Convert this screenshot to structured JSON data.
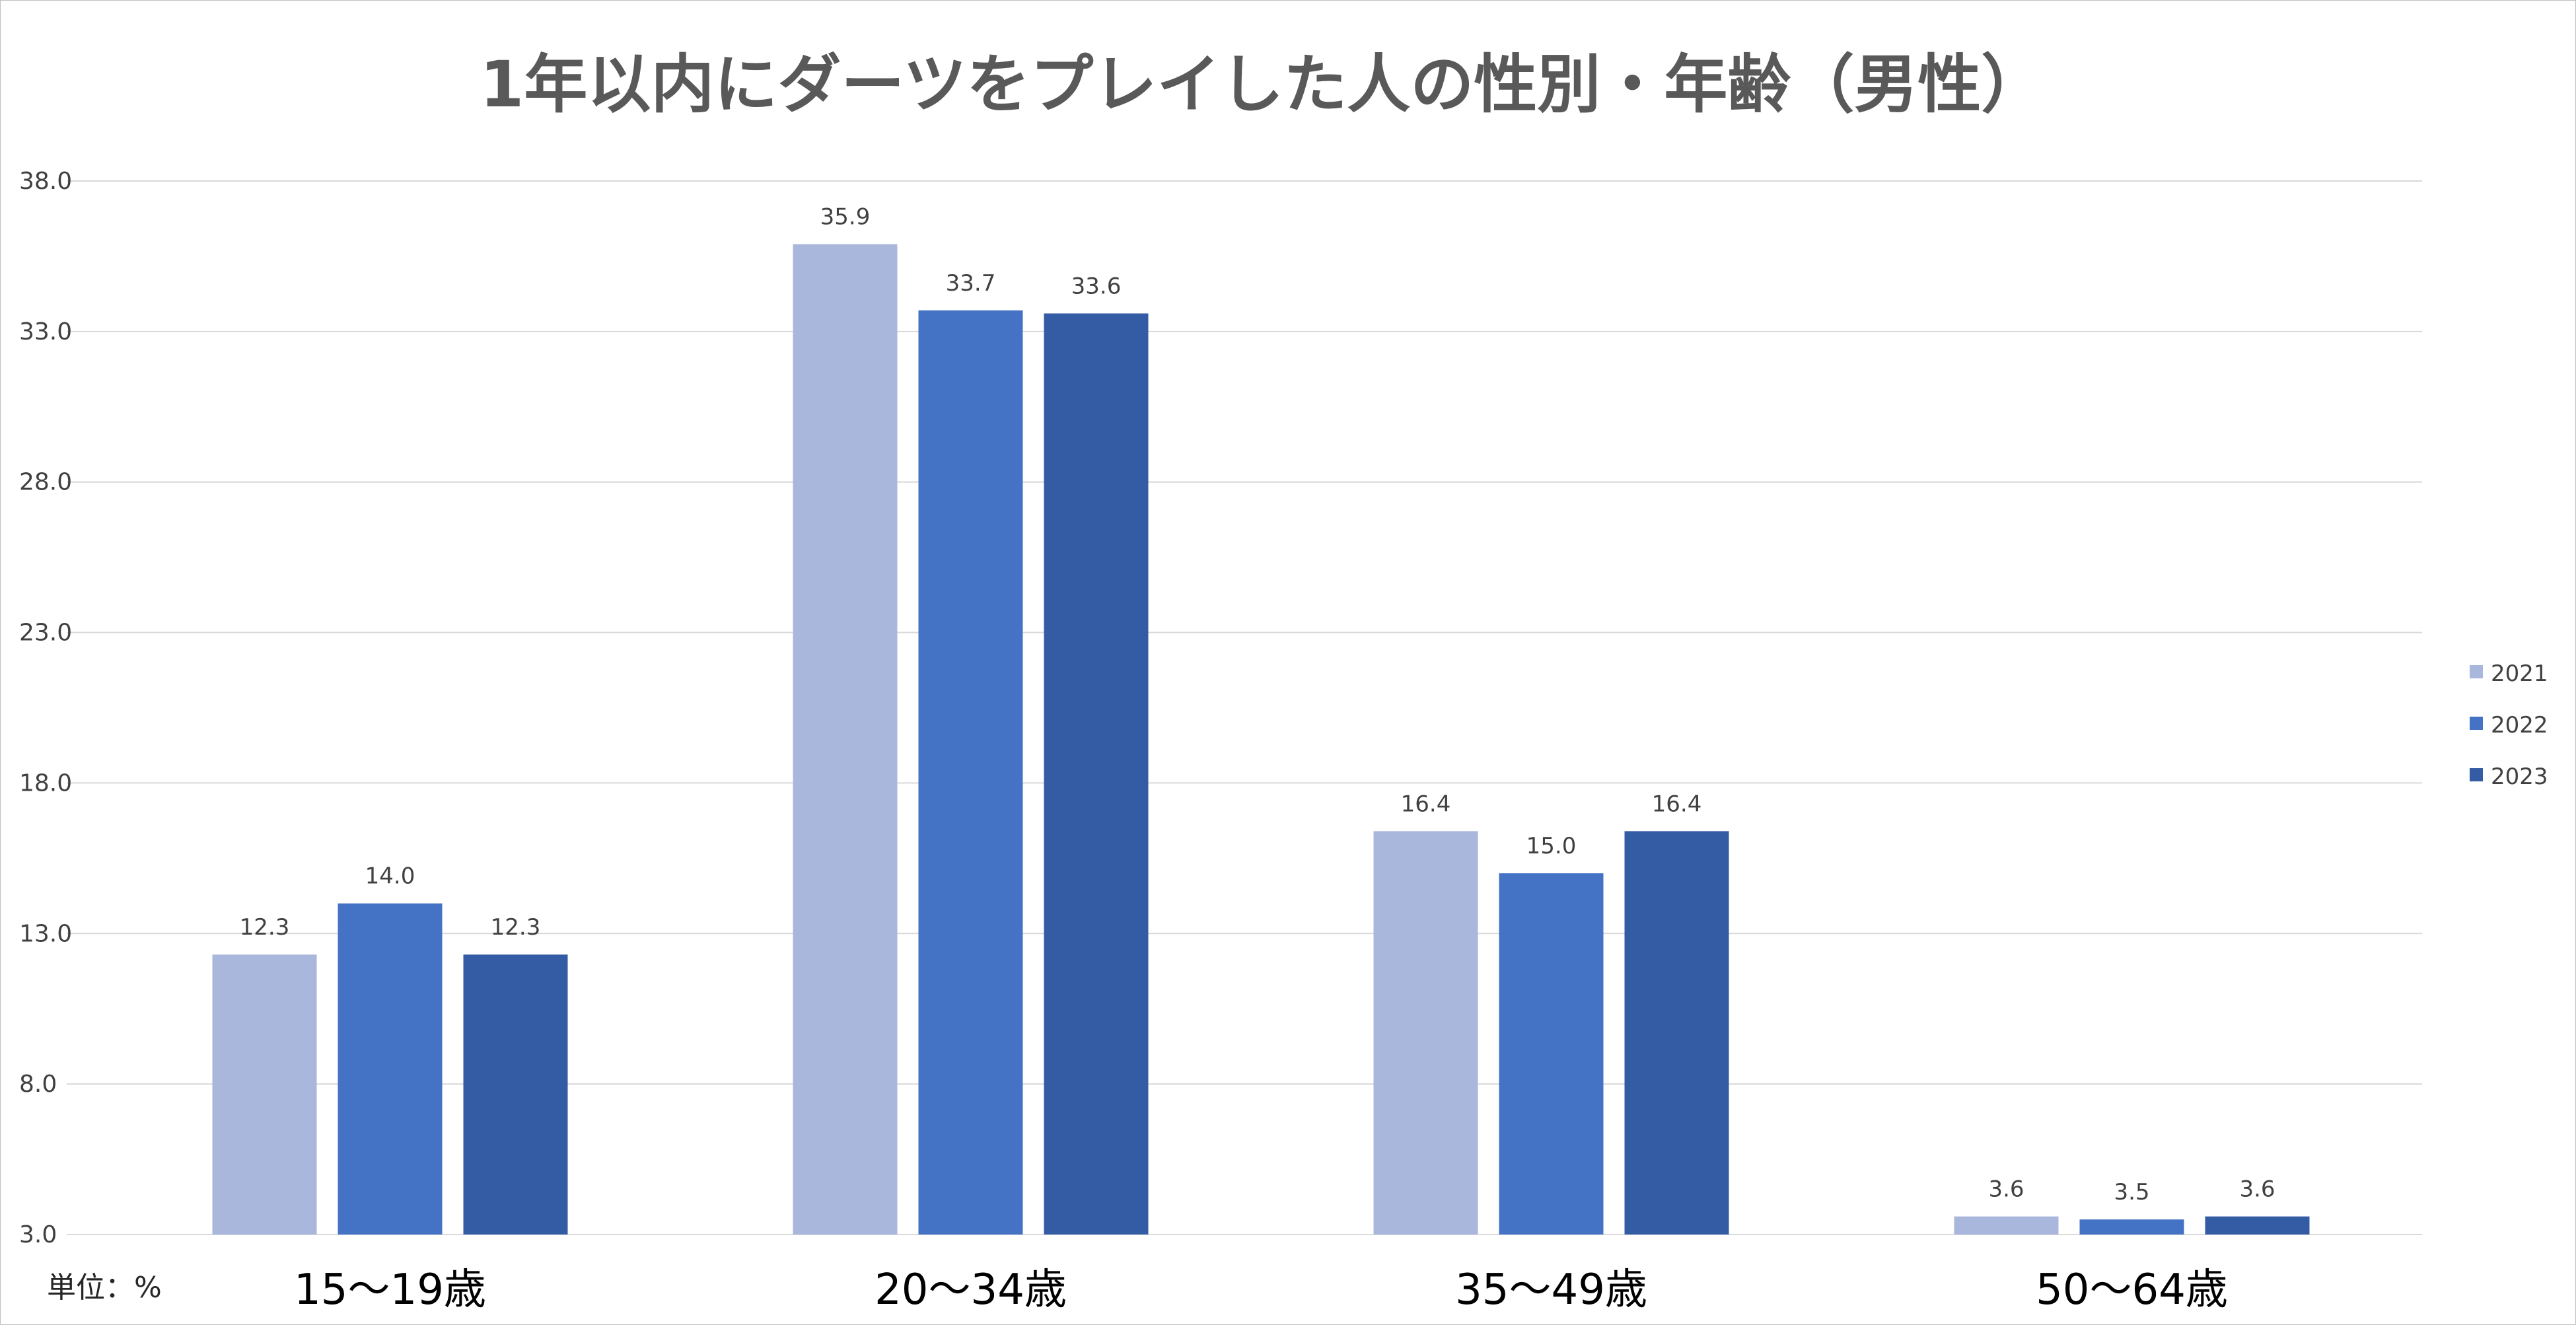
{
  "chart_data": {
    "type": "bar",
    "title": "1年以内にダーツをプレイした人の性別・年齢（男性）",
    "unit_label": "単位：%",
    "categories": [
      "15～19歳",
      "20～34歳",
      "35～49歳",
      "50～64歳"
    ],
    "series": [
      {
        "name": "2021",
        "color": "#A9B7DC",
        "values": [
          12.3,
          35.9,
          16.4,
          3.6
        ]
      },
      {
        "name": "2022",
        "color": "#4472C4",
        "values": [
          14.0,
          33.7,
          15.0,
          3.5
        ]
      },
      {
        "name": "2023",
        "color": "#345CA5",
        "values": [
          12.3,
          33.6,
          16.4,
          3.6
        ]
      }
    ],
    "ylim": [
      3.0,
      38.0
    ],
    "yticks": [
      "3.0",
      "8.0",
      "13.0",
      "18.0",
      "23.0",
      "28.0",
      "33.0",
      "38.0"
    ],
    "ytick_values": [
      3,
      8,
      13,
      18,
      23,
      28,
      33,
      38
    ],
    "grid": true,
    "legend_position": "right",
    "xlabel": "",
    "ylabel": ""
  }
}
